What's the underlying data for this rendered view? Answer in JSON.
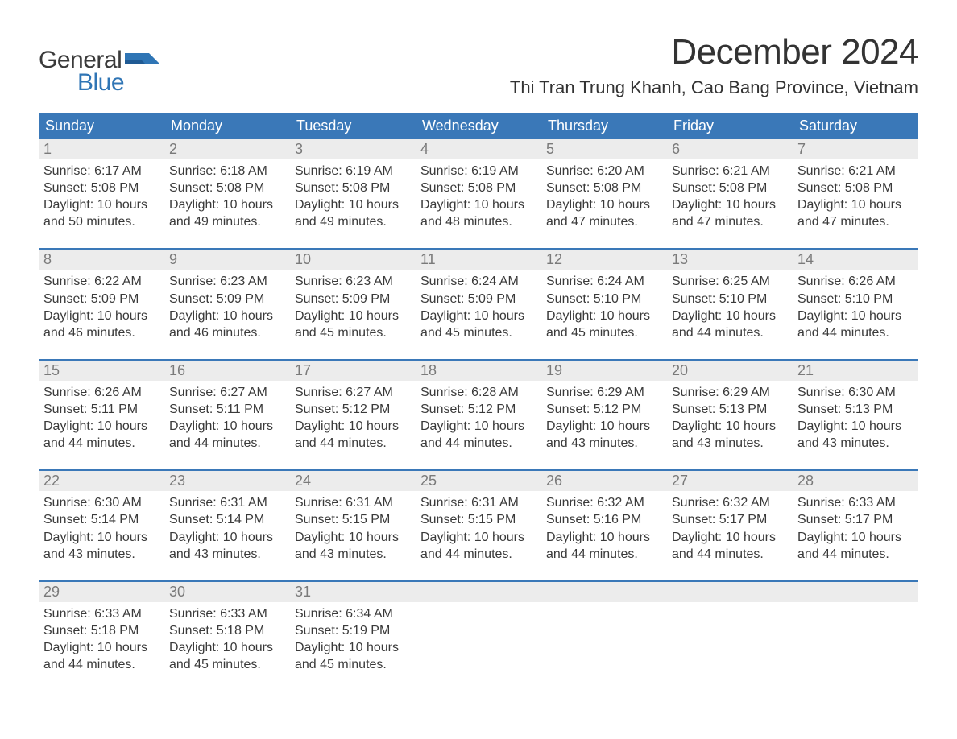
{
  "brand": {
    "line1": "General",
    "line2": "Blue",
    "flag_color": "#2f75b5"
  },
  "title": "December 2024",
  "location": "Thi Tran Trung Khanh, Cao Bang Province, Vietnam",
  "colors": {
    "header_bg": "#3a78b8",
    "header_text": "#ffffff",
    "daynum_bg": "#ececec",
    "daynum_text": "#7a7a7a",
    "body_text": "#3a3a3a",
    "week_border": "#3a78b8",
    "page_bg": "#ffffff"
  },
  "daynames": [
    "Sunday",
    "Monday",
    "Tuesday",
    "Wednesday",
    "Thursday",
    "Friday",
    "Saturday"
  ],
  "weeks": [
    [
      {
        "n": "1",
        "sunrise": "Sunrise: 6:17 AM",
        "sunset": "Sunset: 5:08 PM",
        "d1": "Daylight: 10 hours",
        "d2": "and 50 minutes."
      },
      {
        "n": "2",
        "sunrise": "Sunrise: 6:18 AM",
        "sunset": "Sunset: 5:08 PM",
        "d1": "Daylight: 10 hours",
        "d2": "and 49 minutes."
      },
      {
        "n": "3",
        "sunrise": "Sunrise: 6:19 AM",
        "sunset": "Sunset: 5:08 PM",
        "d1": "Daylight: 10 hours",
        "d2": "and 49 minutes."
      },
      {
        "n": "4",
        "sunrise": "Sunrise: 6:19 AM",
        "sunset": "Sunset: 5:08 PM",
        "d1": "Daylight: 10 hours",
        "d2": "and 48 minutes."
      },
      {
        "n": "5",
        "sunrise": "Sunrise: 6:20 AM",
        "sunset": "Sunset: 5:08 PM",
        "d1": "Daylight: 10 hours",
        "d2": "and 47 minutes."
      },
      {
        "n": "6",
        "sunrise": "Sunrise: 6:21 AM",
        "sunset": "Sunset: 5:08 PM",
        "d1": "Daylight: 10 hours",
        "d2": "and 47 minutes."
      },
      {
        "n": "7",
        "sunrise": "Sunrise: 6:21 AM",
        "sunset": "Sunset: 5:08 PM",
        "d1": "Daylight: 10 hours",
        "d2": "and 47 minutes."
      }
    ],
    [
      {
        "n": "8",
        "sunrise": "Sunrise: 6:22 AM",
        "sunset": "Sunset: 5:09 PM",
        "d1": "Daylight: 10 hours",
        "d2": "and 46 minutes."
      },
      {
        "n": "9",
        "sunrise": "Sunrise: 6:23 AM",
        "sunset": "Sunset: 5:09 PM",
        "d1": "Daylight: 10 hours",
        "d2": "and 46 minutes."
      },
      {
        "n": "10",
        "sunrise": "Sunrise: 6:23 AM",
        "sunset": "Sunset: 5:09 PM",
        "d1": "Daylight: 10 hours",
        "d2": "and 45 minutes."
      },
      {
        "n": "11",
        "sunrise": "Sunrise: 6:24 AM",
        "sunset": "Sunset: 5:09 PM",
        "d1": "Daylight: 10 hours",
        "d2": "and 45 minutes."
      },
      {
        "n": "12",
        "sunrise": "Sunrise: 6:24 AM",
        "sunset": "Sunset: 5:10 PM",
        "d1": "Daylight: 10 hours",
        "d2": "and 45 minutes."
      },
      {
        "n": "13",
        "sunrise": "Sunrise: 6:25 AM",
        "sunset": "Sunset: 5:10 PM",
        "d1": "Daylight: 10 hours",
        "d2": "and 44 minutes."
      },
      {
        "n": "14",
        "sunrise": "Sunrise: 6:26 AM",
        "sunset": "Sunset: 5:10 PM",
        "d1": "Daylight: 10 hours",
        "d2": "and 44 minutes."
      }
    ],
    [
      {
        "n": "15",
        "sunrise": "Sunrise: 6:26 AM",
        "sunset": "Sunset: 5:11 PM",
        "d1": "Daylight: 10 hours",
        "d2": "and 44 minutes."
      },
      {
        "n": "16",
        "sunrise": "Sunrise: 6:27 AM",
        "sunset": "Sunset: 5:11 PM",
        "d1": "Daylight: 10 hours",
        "d2": "and 44 minutes."
      },
      {
        "n": "17",
        "sunrise": "Sunrise: 6:27 AM",
        "sunset": "Sunset: 5:12 PM",
        "d1": "Daylight: 10 hours",
        "d2": "and 44 minutes."
      },
      {
        "n": "18",
        "sunrise": "Sunrise: 6:28 AM",
        "sunset": "Sunset: 5:12 PM",
        "d1": "Daylight: 10 hours",
        "d2": "and 44 minutes."
      },
      {
        "n": "19",
        "sunrise": "Sunrise: 6:29 AM",
        "sunset": "Sunset: 5:12 PM",
        "d1": "Daylight: 10 hours",
        "d2": "and 43 minutes."
      },
      {
        "n": "20",
        "sunrise": "Sunrise: 6:29 AM",
        "sunset": "Sunset: 5:13 PM",
        "d1": "Daylight: 10 hours",
        "d2": "and 43 minutes."
      },
      {
        "n": "21",
        "sunrise": "Sunrise: 6:30 AM",
        "sunset": "Sunset: 5:13 PM",
        "d1": "Daylight: 10 hours",
        "d2": "and 43 minutes."
      }
    ],
    [
      {
        "n": "22",
        "sunrise": "Sunrise: 6:30 AM",
        "sunset": "Sunset: 5:14 PM",
        "d1": "Daylight: 10 hours",
        "d2": "and 43 minutes."
      },
      {
        "n": "23",
        "sunrise": "Sunrise: 6:31 AM",
        "sunset": "Sunset: 5:14 PM",
        "d1": "Daylight: 10 hours",
        "d2": "and 43 minutes."
      },
      {
        "n": "24",
        "sunrise": "Sunrise: 6:31 AM",
        "sunset": "Sunset: 5:15 PM",
        "d1": "Daylight: 10 hours",
        "d2": "and 43 minutes."
      },
      {
        "n": "25",
        "sunrise": "Sunrise: 6:31 AM",
        "sunset": "Sunset: 5:15 PM",
        "d1": "Daylight: 10 hours",
        "d2": "and 44 minutes."
      },
      {
        "n": "26",
        "sunrise": "Sunrise: 6:32 AM",
        "sunset": "Sunset: 5:16 PM",
        "d1": "Daylight: 10 hours",
        "d2": "and 44 minutes."
      },
      {
        "n": "27",
        "sunrise": "Sunrise: 6:32 AM",
        "sunset": "Sunset: 5:17 PM",
        "d1": "Daylight: 10 hours",
        "d2": "and 44 minutes."
      },
      {
        "n": "28",
        "sunrise": "Sunrise: 6:33 AM",
        "sunset": "Sunset: 5:17 PM",
        "d1": "Daylight: 10 hours",
        "d2": "and 44 minutes."
      }
    ],
    [
      {
        "n": "29",
        "sunrise": "Sunrise: 6:33 AM",
        "sunset": "Sunset: 5:18 PM",
        "d1": "Daylight: 10 hours",
        "d2": "and 44 minutes."
      },
      {
        "n": "30",
        "sunrise": "Sunrise: 6:33 AM",
        "sunset": "Sunset: 5:18 PM",
        "d1": "Daylight: 10 hours",
        "d2": "and 45 minutes."
      },
      {
        "n": "31",
        "sunrise": "Sunrise: 6:34 AM",
        "sunset": "Sunset: 5:19 PM",
        "d1": "Daylight: 10 hours",
        "d2": "and 45 minutes."
      },
      null,
      null,
      null,
      null
    ]
  ]
}
